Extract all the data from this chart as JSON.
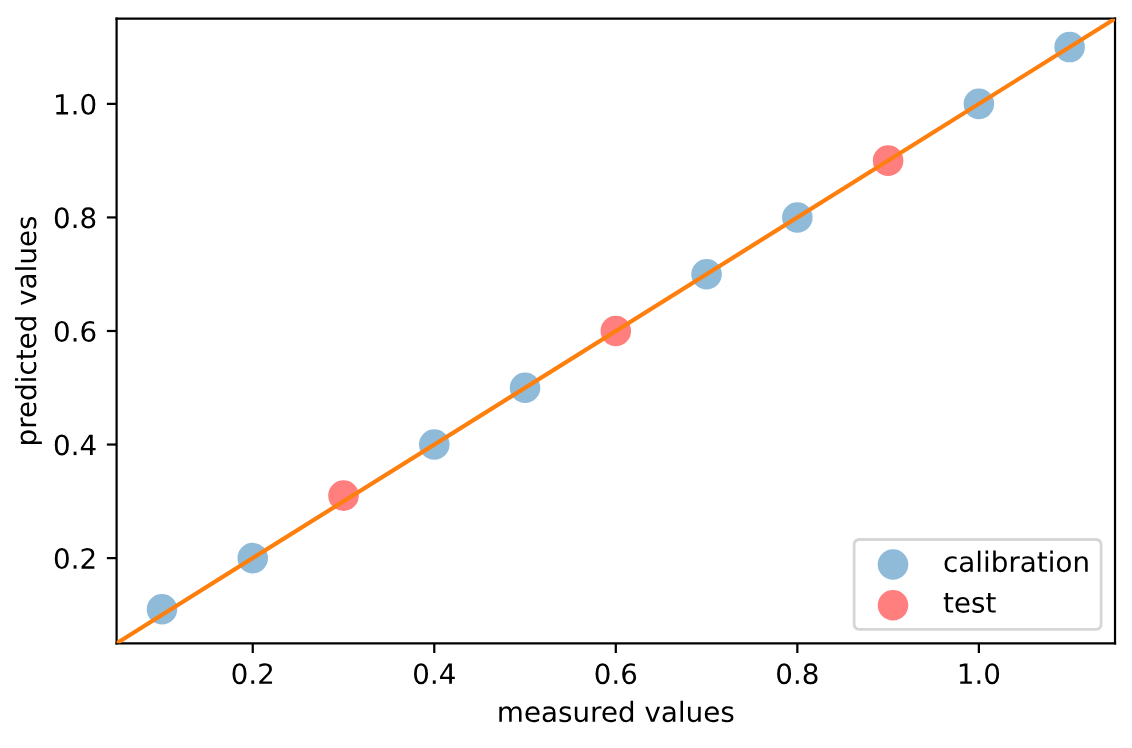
{
  "chart_data": {
    "type": "scatter",
    "xlabel": "measured values",
    "ylabel": "predicted values",
    "xlim": [
      0.05,
      1.15
    ],
    "ylim": [
      0.05,
      1.15
    ],
    "xticks": [
      0.2,
      0.4,
      0.6,
      0.8,
      {
        "value": 1,
        "label": "1.0"
      }
    ],
    "yticks": [
      0.2,
      0.4,
      0.6,
      0.8,
      {
        "value": 1,
        "label": "1.0"
      }
    ],
    "grid": false,
    "legend": "bottom right",
    "marker": "circle",
    "series": [
      {
        "name": "calibration",
        "color": "#8fbbd9",
        "x": [
          0.1,
          0.2,
          0.4,
          0.5,
          0.7,
          0.8,
          1.0,
          1.1
        ],
        "values": [
          0.11,
          0.2,
          0.4,
          0.5,
          0.7,
          0.8,
          1.0,
          1.1
        ]
      },
      {
        "name": "test",
        "color": "#ff7f7f",
        "x": [
          0.3,
          0.6,
          0.9
        ],
        "values": [
          0.31,
          0.6,
          0.9
        ]
      },
      {
        "type": "line",
        "color": "#ff7f0e",
        "line_style": "solid",
        "marker": "none",
        "x": [
          0.05,
          1.15
        ],
        "values": [
          0.05,
          1.15
        ]
      }
    ]
  }
}
